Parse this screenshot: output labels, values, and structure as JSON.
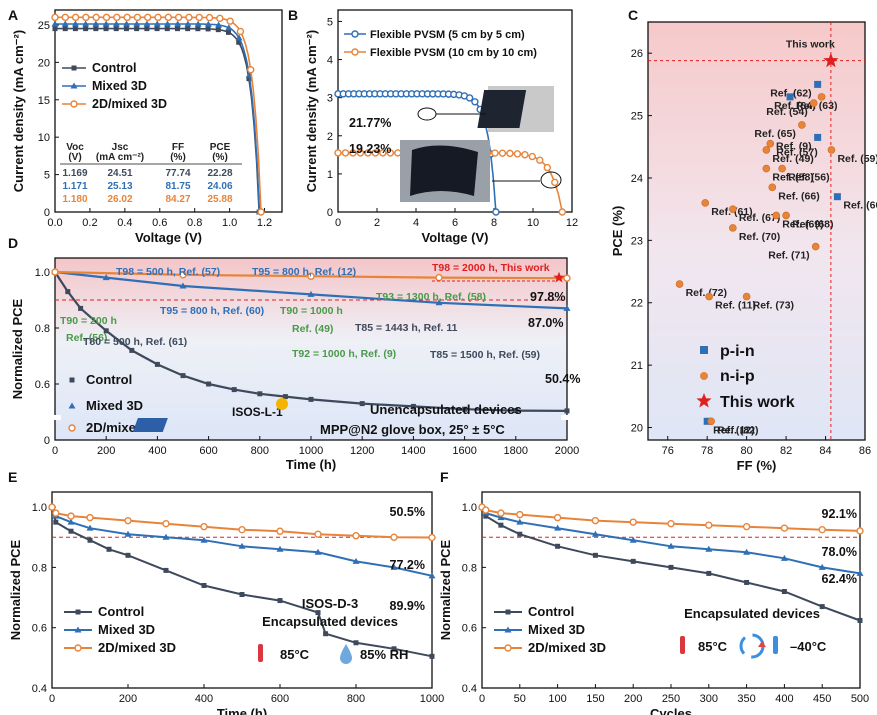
{
  "colors": {
    "control": "#3e4a5c",
    "mixed": "#2f6fb6",
    "twod": "#e8843a",
    "red": "#e02020",
    "green": "#4a9a4a"
  },
  "panel_letters": [
    "A",
    "B",
    "C",
    "D",
    "E",
    "F"
  ],
  "chart_data": [
    {
      "id": "A",
      "type": "line",
      "xlabel": "Voltage (V)",
      "ylabel": "Current density (mA cm⁻²)",
      "xlim": [
        0,
        1.3
      ],
      "ylim": [
        0,
        27
      ],
      "xticks": [
        "0.0",
        "0.2",
        "0.4",
        "0.6",
        "0.8",
        "1.0",
        "1.2"
      ],
      "yticks": [
        "0",
        "5",
        "10",
        "15",
        "20",
        "25"
      ],
      "series": [
        {
          "name": "Control",
          "jsc": 24.51,
          "voc": 1.169,
          "ff": 77.74
        },
        {
          "name": "Mixed 3D",
          "jsc": 25.13,
          "voc": 1.171,
          "ff": 81.75
        },
        {
          "name": "2D/mixed 3D",
          "jsc": 26.02,
          "voc": 1.18,
          "ff": 84.27
        }
      ],
      "table": {
        "headers": [
          "Voc",
          "Jsc",
          "FF",
          "PCE"
        ],
        "units": [
          "(V)",
          "(mA cm⁻²)",
          "(%)",
          "(%)"
        ],
        "rows": [
          [
            "1.169",
            "24.51",
            "77.74",
            "22.28"
          ],
          [
            "1.171",
            "25.13",
            "81.75",
            "24.06"
          ],
          [
            "1.180",
            "26.02",
            "84.27",
            "25.88"
          ]
        ]
      }
    },
    {
      "id": "B",
      "type": "line",
      "xlabel": "Voltage (V)",
      "ylabel": "Current density (mA cm⁻²)",
      "xlim": [
        0,
        12
      ],
      "ylim": [
        0,
        5.3
      ],
      "xticks": [
        "0",
        "2",
        "4",
        "6",
        "8",
        "10",
        "12"
      ],
      "yticks": [
        "0",
        "1",
        "2",
        "3",
        "4",
        "5"
      ],
      "series": [
        {
          "name": "Flexible PVSM (5 cm by 5 cm)",
          "jsc": 3.1,
          "voc": 8.1,
          "pce_label": "21.77%"
        },
        {
          "name": "Flexible PVSM (10 cm by 10 cm)",
          "jsc": 1.55,
          "voc": 11.5,
          "pce_label": "19.23%"
        }
      ]
    },
    {
      "id": "C",
      "type": "scatter",
      "xlabel": "FF (%)",
      "ylabel": "PCE (%)",
      "xlim": [
        75,
        86
      ],
      "ylim": [
        19.8,
        26.5
      ],
      "xticks": [
        "76",
        "78",
        "80",
        "82",
        "84",
        "86"
      ],
      "yticks": [
        "20",
        "21",
        "22",
        "23",
        "24",
        "25",
        "26"
      ],
      "this_work": {
        "x": 84.27,
        "y": 25.88,
        "label": "This work"
      },
      "legend": [
        "p-i-n",
        "n-i-p",
        "This work"
      ],
      "points": [
        {
          "x": 83.6,
          "y": 25.5,
          "t": "pin",
          "label": "Ref. (62)"
        },
        {
          "x": 82.2,
          "y": 25.3,
          "t": "pin",
          "label": "Ref. (63)"
        },
        {
          "x": 83.8,
          "y": 25.3,
          "t": "nip",
          "label": "Ref. (64)"
        },
        {
          "x": 83.4,
          "y": 25.2,
          "t": "nip",
          "label": "Ref. (54)"
        },
        {
          "x": 82.8,
          "y": 24.85,
          "t": "nip",
          "label": "Ref. (65)"
        },
        {
          "x": 83.6,
          "y": 24.65,
          "t": "pin",
          "label": "Ref. (9)"
        },
        {
          "x": 81.2,
          "y": 24.55,
          "t": "nip",
          "label": "Ref. (57)"
        },
        {
          "x": 81.0,
          "y": 24.45,
          "t": "nip",
          "label": "Ref. (49)"
        },
        {
          "x": 84.3,
          "y": 24.45,
          "t": "nip",
          "label": "Ref. (59)"
        },
        {
          "x": 81.0,
          "y": 24.15,
          "t": "nip",
          "label": "Ref. (58)"
        },
        {
          "x": 81.8,
          "y": 24.15,
          "t": "nip",
          "label": "Ref. (56)"
        },
        {
          "x": 81.3,
          "y": 23.85,
          "t": "nip",
          "label": "Ref. (66)"
        },
        {
          "x": 84.6,
          "y": 23.7,
          "t": "pin",
          "label": "Ref. (60)"
        },
        {
          "x": 77.9,
          "y": 23.6,
          "t": "nip",
          "label": "Ref. (61)"
        },
        {
          "x": 79.3,
          "y": 23.5,
          "t": "nip",
          "label": "Ref. (67)"
        },
        {
          "x": 82.0,
          "y": 23.4,
          "t": "nip",
          "label": "Ref. (68)"
        },
        {
          "x": 81.5,
          "y": 23.4,
          "t": "nip",
          "label": "Ref. (69)"
        },
        {
          "x": 79.3,
          "y": 23.2,
          "t": "nip",
          "label": "Ref. (70)"
        },
        {
          "x": 83.5,
          "y": 22.9,
          "t": "nip",
          "label": "Ref. (71)"
        },
        {
          "x": 76.6,
          "y": 22.3,
          "t": "nip",
          "label": "Ref. (72)"
        },
        {
          "x": 78.1,
          "y": 22.1,
          "t": "nip",
          "label": "Ref. (11)"
        },
        {
          "x": 80.0,
          "y": 22.1,
          "t": "nip",
          "label": "Ref. (73)"
        },
        {
          "x": 78.0,
          "y": 20.1,
          "t": "pin",
          "label": "Ref. (12)"
        },
        {
          "x": 78.2,
          "y": 20.1,
          "t": "nip",
          "label": "Ref. (82)"
        }
      ]
    },
    {
      "id": "D",
      "type": "line",
      "xlabel": "Time (h)",
      "ylabel": "Normalized PCE",
      "xlim": [
        0,
        2000
      ],
      "ylim": [
        0,
        1.05
      ],
      "xticks": [
        "0",
        "200",
        "400",
        "600",
        "800",
        "1000",
        "1200",
        "1400",
        "1600",
        "1800",
        "2000"
      ],
      "yticks": [
        "0",
        "0.6",
        "0.8",
        "1.0"
      ],
      "series": [
        {
          "name": "Control",
          "x": [
            0,
            50,
            100,
            200,
            300,
            400,
            500,
            600,
            700,
            800,
            900,
            1000,
            1200,
            1400,
            1600,
            1800,
            2000
          ],
          "y": [
            1.0,
            0.93,
            0.87,
            0.79,
            0.72,
            0.67,
            0.63,
            0.6,
            0.58,
            0.565,
            0.555,
            0.545,
            0.53,
            0.52,
            0.51,
            0.505,
            0.504
          ],
          "end_label": "50.4%"
        },
        {
          "name": "Mixed 3D",
          "x": [
            0,
            200,
            500,
            1000,
            1500,
            2000
          ],
          "y": [
            1.0,
            0.98,
            0.95,
            0.92,
            0.89,
            0.87
          ],
          "end_label": "87.0%"
        },
        {
          "name": "2D/mixed 3D",
          "x": [
            0,
            500,
            1000,
            1500,
            2000
          ],
          "y": [
            1.0,
            0.99,
            0.985,
            0.98,
            0.978
          ],
          "end_label": "97.8%"
        }
      ],
      "annotations": [
        {
          "text": "T98 = 500 h, Ref. (57)",
          "color": "mixed"
        },
        {
          "text": "T95 = 800 h, Ref. (12)",
          "color": "mixed"
        },
        {
          "text": "T98 = 2000 h, This work",
          "color": "red"
        },
        {
          "text": "T93 = 1300 h, Ref. (58)",
          "color": "green"
        },
        {
          "text": "T95 = 800 h, Ref. (60)",
          "color": "mixed"
        },
        {
          "text": "T90 = 1000 h",
          "color": "green"
        },
        {
          "text": "Ref. (49)",
          "color": "green"
        },
        {
          "text": "T90 = 200 h",
          "color": "green"
        },
        {
          "text": "Ref. (56)",
          "color": "green"
        },
        {
          "text": "T80 = 500 h, Ref. (61)",
          "color": "control"
        },
        {
          "text": "T85 = 1443 h, Ref. 11",
          "color": "control"
        },
        {
          "text": "T92 = 1000 h, Ref. (9)",
          "color": "green"
        },
        {
          "text": "T85 = 1500 h, Ref. (59)",
          "color": "control"
        }
      ],
      "notes": [
        "ISOS-L-1",
        "Unencapsulated devices",
        "MPP@N2 glove box, 25° ± 5°C"
      ]
    },
    {
      "id": "E",
      "type": "line",
      "xlabel": "Time (h)",
      "ylabel": "Normalized PCE",
      "xlim": [
        0,
        1000
      ],
      "ylim": [
        0.4,
        1.05
      ],
      "xticks": [
        "0",
        "200",
        "400",
        "600",
        "800",
        "1000"
      ],
      "yticks": [
        "0.4",
        "0.6",
        "0.8",
        "1.0"
      ],
      "series": [
        {
          "name": "Control",
          "x": [
            0,
            10,
            50,
            100,
            150,
            200,
            300,
            400,
            500,
            600,
            700,
            720,
            800,
            900,
            1000
          ],
          "y": [
            1.0,
            0.95,
            0.92,
            0.89,
            0.86,
            0.84,
            0.79,
            0.74,
            0.71,
            0.69,
            0.65,
            0.58,
            0.55,
            0.53,
            0.505
          ],
          "end_label": "50.5%"
        },
        {
          "name": "Mixed 3D",
          "x": [
            0,
            10,
            50,
            100,
            200,
            300,
            400,
            500,
            600,
            700,
            800,
            900,
            1000
          ],
          "y": [
            1.0,
            0.97,
            0.95,
            0.93,
            0.91,
            0.9,
            0.89,
            0.87,
            0.86,
            0.85,
            0.82,
            0.8,
            0.772
          ],
          "end_label": "77.2%"
        },
        {
          "name": "2D/mixed 3D",
          "x": [
            0,
            10,
            50,
            100,
            200,
            300,
            400,
            500,
            600,
            700,
            800,
            900,
            1000
          ],
          "y": [
            1.0,
            0.98,
            0.97,
            0.965,
            0.955,
            0.945,
            0.935,
            0.925,
            0.92,
            0.91,
            0.905,
            0.9,
            0.899
          ],
          "end_label": "89.9%"
        }
      ],
      "notes": [
        "ISOS-D-3",
        "Encapsulated devices",
        "85°C",
        "85% RH"
      ]
    },
    {
      "id": "F",
      "type": "line",
      "xlabel": "Cycles",
      "ylabel": "Normalized PCE",
      "xlim": [
        0,
        500
      ],
      "ylim": [
        0.4,
        1.05
      ],
      "xticks": [
        "0",
        "50",
        "100",
        "150",
        "200",
        "250",
        "300",
        "350",
        "400",
        "450",
        "500"
      ],
      "yticks": [
        "0.4",
        "0.6",
        "0.8",
        "1.0"
      ],
      "series": [
        {
          "name": "Control",
          "x": [
            0,
            5,
            25,
            50,
            100,
            150,
            200,
            250,
            300,
            350,
            400,
            450,
            500
          ],
          "y": [
            1.0,
            0.97,
            0.94,
            0.91,
            0.87,
            0.84,
            0.82,
            0.8,
            0.78,
            0.75,
            0.72,
            0.67,
            0.624
          ],
          "end_label": "62.4%"
        },
        {
          "name": "Mixed 3D",
          "x": [
            0,
            5,
            25,
            50,
            100,
            150,
            200,
            250,
            300,
            350,
            400,
            450,
            500
          ],
          "y": [
            1.0,
            0.98,
            0.965,
            0.95,
            0.93,
            0.91,
            0.89,
            0.87,
            0.86,
            0.85,
            0.83,
            0.8,
            0.78
          ],
          "end_label": "78.0%"
        },
        {
          "name": "2D/mixed 3D",
          "x": [
            0,
            5,
            25,
            50,
            100,
            150,
            200,
            250,
            300,
            350,
            400,
            450,
            500
          ],
          "y": [
            1.0,
            0.99,
            0.98,
            0.975,
            0.965,
            0.955,
            0.95,
            0.945,
            0.94,
            0.935,
            0.93,
            0.925,
            0.921
          ],
          "end_label": "92.1%"
        }
      ],
      "notes": [
        "Encapsulated devices",
        "85°C",
        "–40°C"
      ]
    }
  ]
}
